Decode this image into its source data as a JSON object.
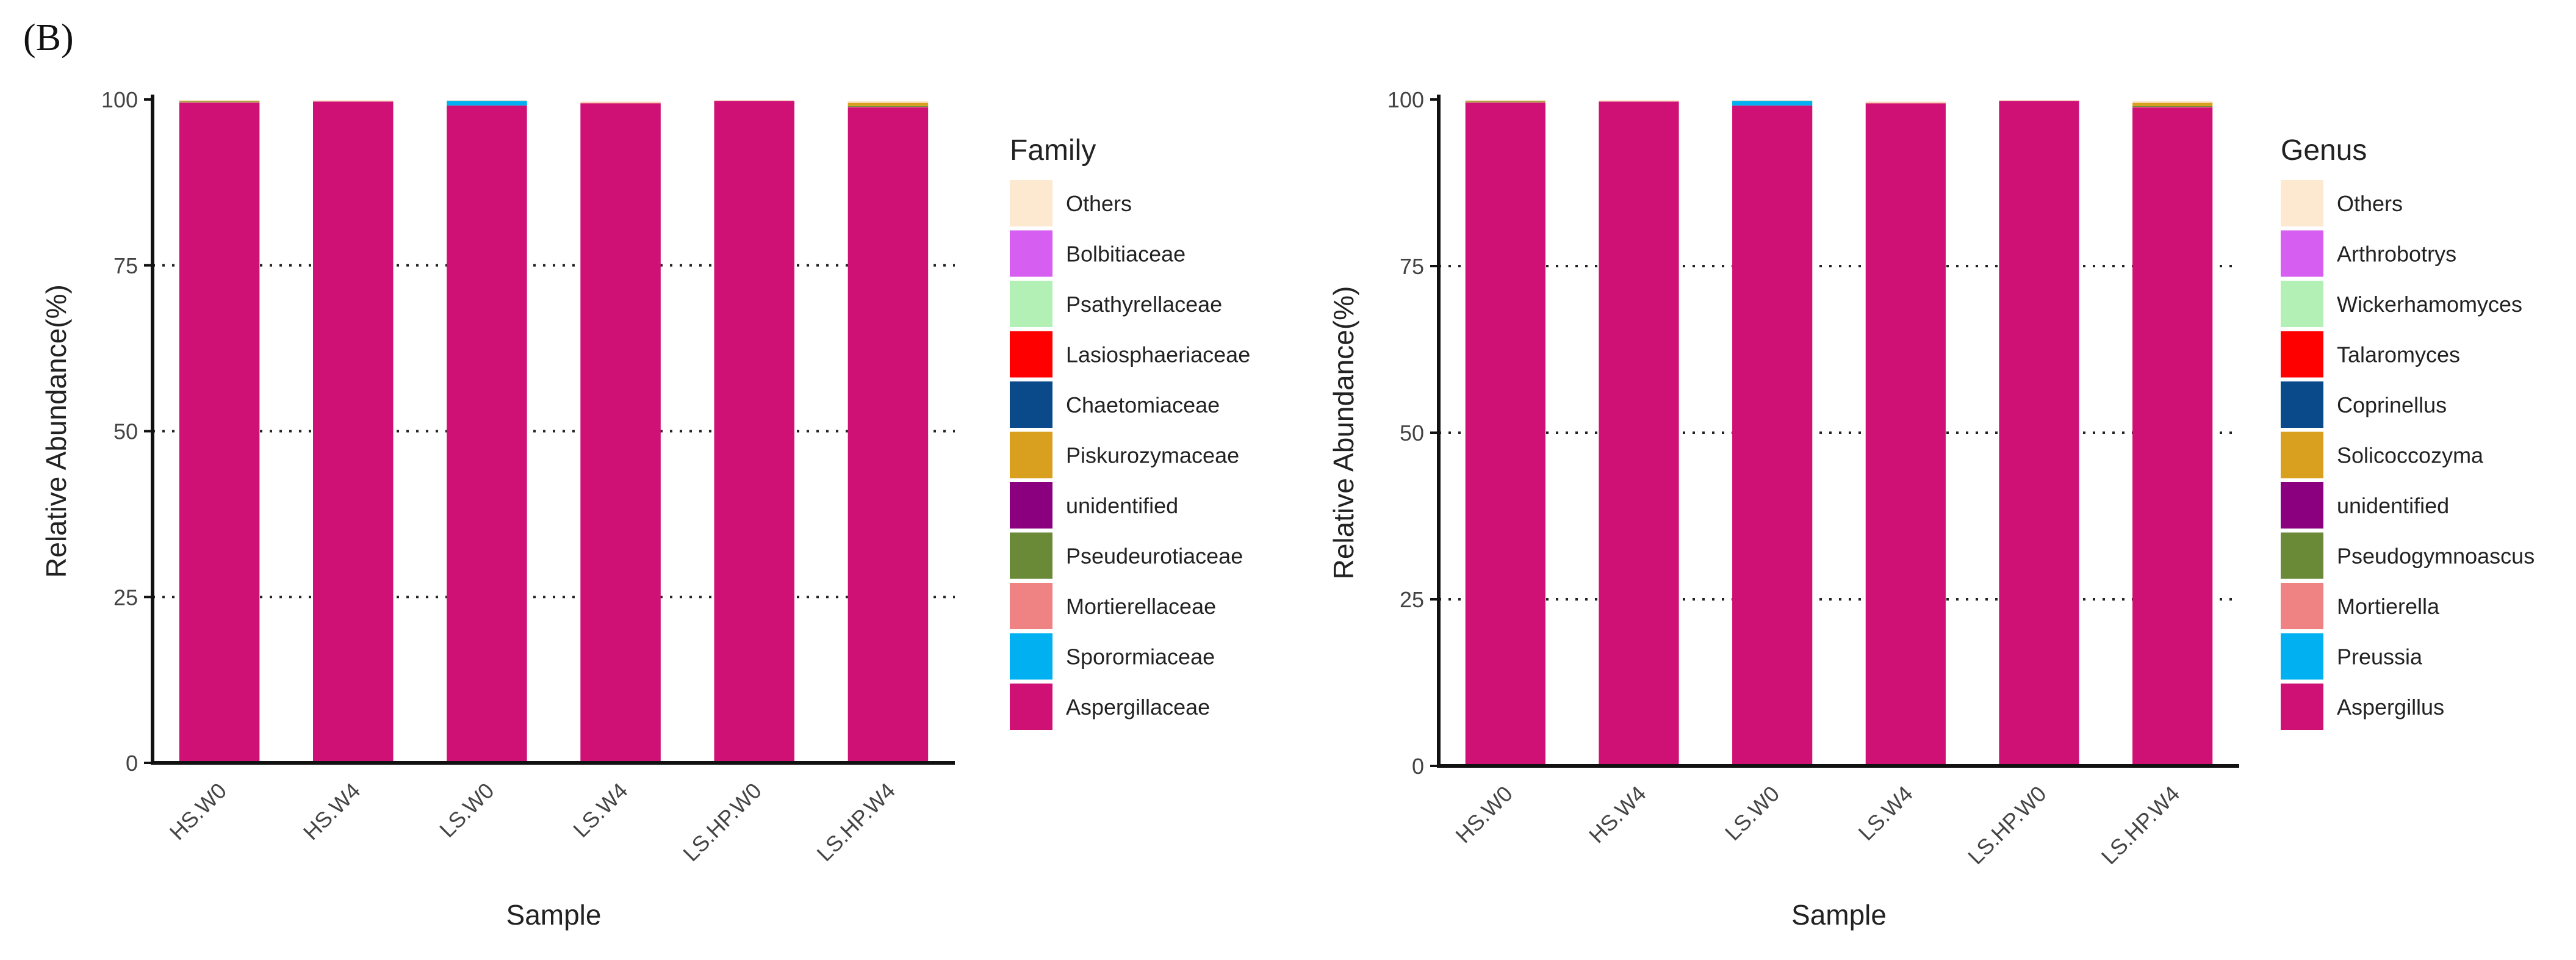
{
  "panel_label": "(B)",
  "colors": {
    "Others": "#fde8d0",
    "Bolbitiaceae": "#d65ef0",
    "Psathyrellaceae": "#b2f0b5",
    "Lasiosphaeriaceae": "#ff0000",
    "Chaetomiaceae": "#0a4a8a",
    "Piskurozymaceae": "#d9a020",
    "unidentified": "#8a007f",
    "Pseudeurotiaceae": "#6b8a38",
    "Mortierellaceae": "#ef8282",
    "Sporormiaceae": "#00b0f0",
    "Aspergillaceae": "#cf1176"
  },
  "chart_data": [
    {
      "type": "bar",
      "stacked": true,
      "title": "",
      "xlabel": "Sample",
      "ylabel": "Relative Abundance(%)",
      "ylim": [
        0,
        100
      ],
      "yticks": [
        "0",
        "25",
        "50",
        "75",
        "100"
      ],
      "categories": [
        "HS.W0",
        "HS.W4",
        "LS.W0",
        "LS.W4",
        "LS.HP.W0",
        "LS.HP.W4"
      ],
      "legend_title": "Family",
      "legend_position": "right",
      "series": [
        {
          "name": "Aspergillaceae",
          "color": "#cf1176",
          "values": [
            99.5,
            99.7,
            99.1,
            99.4,
            99.8,
            98.8
          ]
        },
        {
          "name": "Sporormiaceae",
          "color": "#00b0f0",
          "values": [
            0,
            0,
            0.7,
            0,
            0,
            0
          ]
        },
        {
          "name": "Mortierellaceae",
          "color": "#ef8282",
          "values": [
            0.1,
            0,
            0,
            0.1,
            0,
            0.1
          ]
        },
        {
          "name": "Pseudeurotiaceae",
          "color": "#6b8a38",
          "values": [
            0.1,
            0,
            0,
            0,
            0,
            0.1
          ]
        },
        {
          "name": "unidentified",
          "color": "#8a007f",
          "values": [
            0,
            0,
            0,
            0,
            0,
            0
          ]
        },
        {
          "name": "Piskurozymaceae",
          "color": "#d9a020",
          "values": [
            0.1,
            0,
            0,
            0,
            0,
            0.5
          ]
        },
        {
          "name": "Chaetomiaceae",
          "color": "#0a4a8a",
          "values": [
            0,
            0,
            0,
            0,
            0,
            0
          ]
        },
        {
          "name": "Lasiosphaeriaceae",
          "color": "#ff0000",
          "values": [
            0,
            0,
            0,
            0,
            0,
            0
          ]
        },
        {
          "name": "Psathyrellaceae",
          "color": "#b2f0b5",
          "values": [
            0,
            0,
            0,
            0,
            0,
            0
          ]
        },
        {
          "name": "Bolbitiaceae",
          "color": "#d65ef0",
          "values": [
            0,
            0,
            0,
            0,
            0,
            0
          ]
        },
        {
          "name": "Others",
          "color": "#fde8d0",
          "values": [
            0.1,
            0.2,
            0.1,
            0.2,
            0.1,
            0.3
          ]
        }
      ],
      "legend_order": [
        "Others",
        "Bolbitiaceae",
        "Psathyrellaceae",
        "Lasiosphaeriaceae",
        "Chaetomiaceae",
        "Piskurozymaceae",
        "unidentified",
        "Pseudeurotiaceae",
        "Mortierellaceae",
        "Sporormiaceae",
        "Aspergillaceae"
      ]
    },
    {
      "type": "bar",
      "stacked": true,
      "title": "",
      "xlabel": "Sample",
      "ylabel": "Relative Abundance(%)",
      "ylim": [
        0,
        100
      ],
      "yticks": [
        "0",
        "25",
        "50",
        "75",
        "100"
      ],
      "categories": [
        "HS.W0",
        "HS.W4",
        "LS.W0",
        "LS.W4",
        "LS.HP.W0",
        "LS.HP.W4"
      ],
      "legend_title": "Genus",
      "legend_position": "right",
      "series": [
        {
          "name": "Aspergillus",
          "color": "#cf1176",
          "values": [
            99.5,
            99.7,
            99.1,
            99.4,
            99.8,
            98.8
          ]
        },
        {
          "name": "Preussia",
          "color": "#00b0f0",
          "values": [
            0,
            0,
            0.7,
            0,
            0,
            0
          ]
        },
        {
          "name": "Mortierella",
          "color": "#ef8282",
          "values": [
            0.1,
            0,
            0,
            0.1,
            0,
            0.1
          ]
        },
        {
          "name": "Pseudogymnoascus",
          "color": "#6b8a38",
          "values": [
            0.1,
            0,
            0,
            0,
            0,
            0.1
          ]
        },
        {
          "name": "unidentified",
          "color": "#8a007f",
          "values": [
            0,
            0,
            0,
            0,
            0,
            0
          ]
        },
        {
          "name": "Solicoccozyma",
          "color": "#d9a020",
          "values": [
            0.1,
            0,
            0,
            0,
            0,
            0.5
          ]
        },
        {
          "name": "Coprinellus",
          "color": "#0a4a8a",
          "values": [
            0,
            0,
            0,
            0,
            0,
            0
          ]
        },
        {
          "name": "Talaromyces",
          "color": "#ff0000",
          "values": [
            0,
            0,
            0,
            0,
            0,
            0
          ]
        },
        {
          "name": "Wickerhamomyces",
          "color": "#b2f0b5",
          "values": [
            0,
            0,
            0,
            0,
            0,
            0
          ]
        },
        {
          "name": "Arthrobotrys",
          "color": "#d65ef0",
          "values": [
            0,
            0,
            0,
            0,
            0,
            0
          ]
        },
        {
          "name": "Others",
          "color": "#fde8d0",
          "values": [
            0.1,
            0.2,
            0.1,
            0.2,
            0.1,
            0.3
          ]
        }
      ],
      "legend_order": [
        "Others",
        "Arthrobotrys",
        "Wickerhamomyces",
        "Talaromyces",
        "Coprinellus",
        "Solicoccozyma",
        "unidentified",
        "Pseudogymnoascus",
        "Mortierella",
        "Preussia",
        "Aspergillus"
      ]
    }
  ]
}
